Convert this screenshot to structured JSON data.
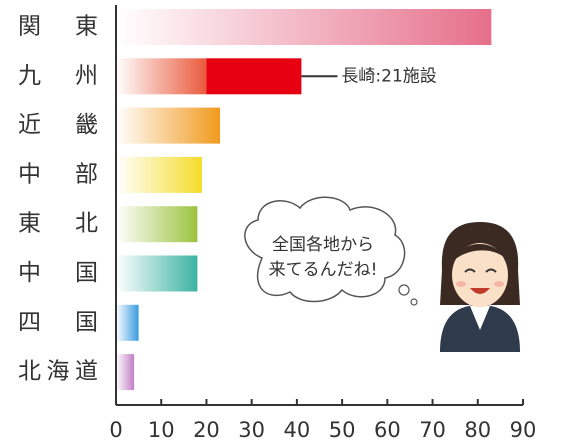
{
  "chart_data": {
    "type": "bar",
    "categories": [
      "関東",
      "九州",
      "近畿",
      "中部",
      "東北",
      "中国",
      "四国",
      "北海道"
    ],
    "values": [
      83,
      20,
      23,
      19,
      18,
      18,
      5,
      4
    ],
    "colors": [
      "#e66f8a",
      "#ea5a3c",
      "#f19a1e",
      "#f4dc2a",
      "#9cc33f",
      "#3bb3a2",
      "#3a9be0",
      "#c17fc4"
    ],
    "annotation": {
      "category": "九州",
      "label": "長崎:21施設",
      "value": 21,
      "color": "#e60012"
    },
    "callout": [
      "全国各地から",
      "来てるんだね!"
    ],
    "xlim": [
      0,
      90
    ],
    "xticks": [
      0,
      10,
      20,
      30,
      40,
      50,
      60,
      70,
      80,
      90
    ]
  }
}
